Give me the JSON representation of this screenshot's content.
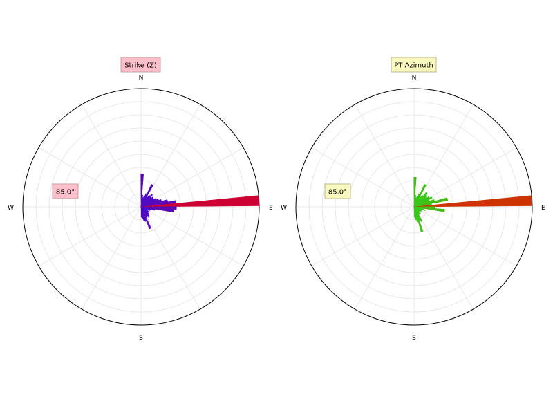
{
  "chart_data": [
    {
      "type": "polar-bar",
      "title": "Strike (Z)",
      "title_box_color": "#ffc0cb",
      "annotation": "85.0°",
      "annotation_box_color": "#ffc0cb",
      "compass_labels": [
        "N",
        "E",
        "S",
        "W"
      ],
      "grid": true,
      "rmax": 100,
      "bar_width_deg": 5,
      "bars": [
        {
          "angle": 2,
          "value": 28
        },
        {
          "angle": 7,
          "value": 10
        },
        {
          "angle": 12,
          "value": 8
        },
        {
          "angle": 17,
          "value": 9
        },
        {
          "angle": 22,
          "value": 12
        },
        {
          "angle": 27,
          "value": 21
        },
        {
          "angle": 32,
          "value": 10
        },
        {
          "angle": 37,
          "value": 12
        },
        {
          "angle": 42,
          "value": 14
        },
        {
          "angle": 47,
          "value": 12
        },
        {
          "angle": 52,
          "value": 13
        },
        {
          "angle": 57,
          "value": 12
        },
        {
          "angle": 62,
          "value": 14
        },
        {
          "angle": 67,
          "value": 16
        },
        {
          "angle": 72,
          "value": 18
        },
        {
          "angle": 77,
          "value": 23
        },
        {
          "angle": 82,
          "value": 30
        },
        {
          "angle": 87,
          "value": 100
        },
        {
          "angle": 92,
          "value": 30
        },
        {
          "angle": 97,
          "value": 28
        },
        {
          "angle": 102,
          "value": 12
        },
        {
          "angle": 107,
          "value": 9
        },
        {
          "angle": 112,
          "value": 8
        },
        {
          "angle": 117,
          "value": 6
        },
        {
          "angle": 122,
          "value": 8
        },
        {
          "angle": 127,
          "value": 7
        },
        {
          "angle": 132,
          "value": 9
        },
        {
          "angle": 137,
          "value": 10
        },
        {
          "angle": 142,
          "value": 11
        },
        {
          "angle": 147,
          "value": 10
        },
        {
          "angle": 152,
          "value": 10
        },
        {
          "angle": 157,
          "value": 20
        },
        {
          "angle": 162,
          "value": 13
        },
        {
          "angle": 167,
          "value": 12
        },
        {
          "angle": 172,
          "value": 10
        },
        {
          "angle": 177,
          "value": 9
        }
      ]
    },
    {
      "type": "polar-bar",
      "title": "PT Azimuth",
      "title_box_color": "#fafac0",
      "annotation": "85.0°",
      "annotation_box_color": "#fafac0",
      "compass_labels": [
        "N",
        "E",
        "S",
        "W"
      ],
      "grid": true,
      "rmax": 100,
      "bar_width_deg": 5,
      "bars": [
        {
          "angle": 2,
          "value": 25
        },
        {
          "angle": 7,
          "value": 10
        },
        {
          "angle": 12,
          "value": 8
        },
        {
          "angle": 17,
          "value": 9
        },
        {
          "angle": 22,
          "value": 12
        },
        {
          "angle": 27,
          "value": 21
        },
        {
          "angle": 32,
          "value": 10
        },
        {
          "angle": 37,
          "value": 12
        },
        {
          "angle": 42,
          "value": 16
        },
        {
          "angle": 47,
          "value": 14
        },
        {
          "angle": 52,
          "value": 13
        },
        {
          "angle": 57,
          "value": 15
        },
        {
          "angle": 62,
          "value": 17
        },
        {
          "angle": 67,
          "value": 14
        },
        {
          "angle": 72,
          "value": 18
        },
        {
          "angle": 77,
          "value": 29
        },
        {
          "angle": 82,
          "value": 15
        },
        {
          "angle": 87,
          "value": 100
        },
        {
          "angle": 92,
          "value": 18
        },
        {
          "angle": 97,
          "value": 26
        },
        {
          "angle": 102,
          "value": 8
        },
        {
          "angle": 107,
          "value": 10
        },
        {
          "angle": 112,
          "value": 6
        },
        {
          "angle": 117,
          "value": 7
        },
        {
          "angle": 122,
          "value": 7
        },
        {
          "angle": 127,
          "value": 6
        },
        {
          "angle": 132,
          "value": 6
        },
        {
          "angle": 137,
          "value": 8
        },
        {
          "angle": 142,
          "value": 7
        },
        {
          "angle": 147,
          "value": 8
        },
        {
          "angle": 152,
          "value": 14
        },
        {
          "angle": 157,
          "value": 12
        },
        {
          "angle": 162,
          "value": 22
        },
        {
          "angle": 167,
          "value": 13
        },
        {
          "angle": 172,
          "value": 11
        },
        {
          "angle": 177,
          "value": 9
        }
      ]
    }
  ]
}
